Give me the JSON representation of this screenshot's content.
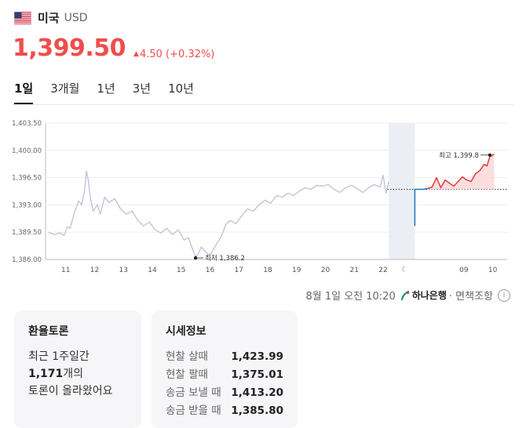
{
  "header": {
    "country": "미국",
    "currency": "USD",
    "flag_icon": "us-flag-icon"
  },
  "price": {
    "value": "1,399.50",
    "change": "4.50 (+0.32%)",
    "direction": "up",
    "color": "#f04d4d"
  },
  "tabs": [
    {
      "label": "1일",
      "active": true
    },
    {
      "label": "3개월",
      "active": false
    },
    {
      "label": "1년",
      "active": false
    },
    {
      "label": "3년",
      "active": false
    },
    {
      "label": "10년",
      "active": false
    }
  ],
  "chart_data": {
    "type": "line",
    "ylim": [
      1386.0,
      1403.5
    ],
    "y_ticks": [
      "1,403.50",
      "1,400.00",
      "1,396.50",
      "1,393.00",
      "1,389.50",
      "1,386.00"
    ],
    "x_ticks": [
      "11",
      "12",
      "13",
      "14",
      "15",
      "16",
      "17",
      "18",
      "19",
      "20",
      "21",
      "22",
      "09",
      "10"
    ],
    "moon_icon": "moon-icon",
    "min_label": "최저 1,386.2",
    "max_label": "최고 1,399.8",
    "prev_close": 1395.0,
    "series": [
      {
        "color": "#c4c4d8",
        "values": [
          [
            10.4,
            1389.5
          ],
          [
            10.6,
            1389.2
          ],
          [
            10.8,
            1389.4
          ],
          [
            10.95,
            1389.1
          ],
          [
            11.05,
            1390.2
          ],
          [
            11.15,
            1390.0
          ],
          [
            11.3,
            1392.0
          ],
          [
            11.45,
            1393.5
          ],
          [
            11.55,
            1393.0
          ],
          [
            11.65,
            1394.8
          ],
          [
            11.72,
            1397.3
          ],
          [
            11.78,
            1396.2
          ],
          [
            11.85,
            1394.0
          ],
          [
            11.95,
            1392.2
          ],
          [
            12.1,
            1393.0
          ],
          [
            12.2,
            1391.8
          ],
          [
            12.35,
            1394.0
          ],
          [
            12.5,
            1393.3
          ],
          [
            12.7,
            1393.8
          ],
          [
            12.9,
            1392.5
          ],
          [
            13.1,
            1391.8
          ],
          [
            13.3,
            1392.2
          ],
          [
            13.5,
            1391.0
          ],
          [
            13.7,
            1390.3
          ],
          [
            13.9,
            1390.8
          ],
          [
            14.1,
            1389.8
          ],
          [
            14.3,
            1389.4
          ],
          [
            14.5,
            1390.0
          ],
          [
            14.7,
            1389.2
          ],
          [
            14.9,
            1389.8
          ],
          [
            15.0,
            1389.2
          ],
          [
            15.1,
            1388.5
          ],
          [
            15.25,
            1388.8
          ],
          [
            15.4,
            1387.3
          ],
          [
            15.5,
            1386.3
          ],
          [
            15.6,
            1386.8
          ],
          [
            15.7,
            1387.6
          ],
          [
            15.85,
            1387.0
          ],
          [
            15.95,
            1386.6
          ],
          [
            16.05,
            1386.8
          ],
          [
            16.2,
            1387.8
          ],
          [
            16.4,
            1389.0
          ],
          [
            16.55,
            1390.5
          ],
          [
            16.7,
            1391.0
          ],
          [
            16.9,
            1390.6
          ],
          [
            17.1,
            1391.6
          ],
          [
            17.3,
            1392.5
          ],
          [
            17.5,
            1392.2
          ],
          [
            17.7,
            1393.0
          ],
          [
            17.9,
            1393.6
          ],
          [
            18.1,
            1393.2
          ],
          [
            18.3,
            1394.2
          ],
          [
            18.5,
            1394.0
          ],
          [
            18.7,
            1394.5
          ],
          [
            18.9,
            1394.2
          ],
          [
            19.1,
            1394.8
          ],
          [
            19.3,
            1395.2
          ],
          [
            19.5,
            1395.0
          ],
          [
            19.7,
            1395.5
          ],
          [
            19.9,
            1395.4
          ],
          [
            20.1,
            1395.6
          ],
          [
            20.3,
            1395.0
          ],
          [
            20.5,
            1394.6
          ],
          [
            20.7,
            1395.2
          ],
          [
            20.9,
            1395.5
          ],
          [
            21.1,
            1395.1
          ],
          [
            21.3,
            1394.6
          ],
          [
            21.5,
            1395.2
          ],
          [
            21.7,
            1395.6
          ],
          [
            21.9,
            1395.3
          ],
          [
            22.0,
            1396.8
          ],
          [
            22.1,
            1394.5
          ],
          [
            22.2,
            1396.0
          ]
        ]
      },
      {
        "color": "#1a78c2",
        "values": [
          [
            23.1,
            1390.3
          ],
          [
            23.1,
            1395.0
          ],
          [
            23.4,
            1395.0
          ],
          [
            23.55,
            1395.1
          ]
        ]
      },
      {
        "color": "#e8383d",
        "values": [
          [
            23.55,
            1395.1
          ],
          [
            23.7,
            1395.3
          ],
          [
            23.85,
            1396.5
          ],
          [
            24.0,
            1395.2
          ],
          [
            24.15,
            1396.2
          ],
          [
            24.3,
            1395.8
          ],
          [
            24.45,
            1395.4
          ],
          [
            24.6,
            1396.0
          ],
          [
            24.75,
            1396.6
          ],
          [
            24.9,
            1396.2
          ],
          [
            25.05,
            1396.0
          ],
          [
            25.2,
            1397.0
          ],
          [
            25.35,
            1397.4
          ],
          [
            25.5,
            1398.2
          ],
          [
            25.6,
            1398.0
          ],
          [
            25.7,
            1399.2
          ],
          [
            25.85,
            1399.5
          ]
        ]
      }
    ]
  },
  "source": {
    "timestamp": "8월 1일 오전 10:20",
    "bank": "하나은행",
    "disclaimer": "· 면책조항",
    "info_icon": "info-icon"
  },
  "forum": {
    "title": "환율토론",
    "line1": "최근 1주일간",
    "count": "1,171",
    "line2_suffix": "개의",
    "line3": "토론이 올라왔어요"
  },
  "market": {
    "title": "시세정보",
    "rows": [
      {
        "label": "현찰 살때",
        "value": "1,423.99"
      },
      {
        "label": "현찰 팔때",
        "value": "1,375.01"
      },
      {
        "label": "송금 보낼 때",
        "value": "1,413.20"
      },
      {
        "label": "송금 받을 때",
        "value": "1,385.80"
      }
    ]
  }
}
